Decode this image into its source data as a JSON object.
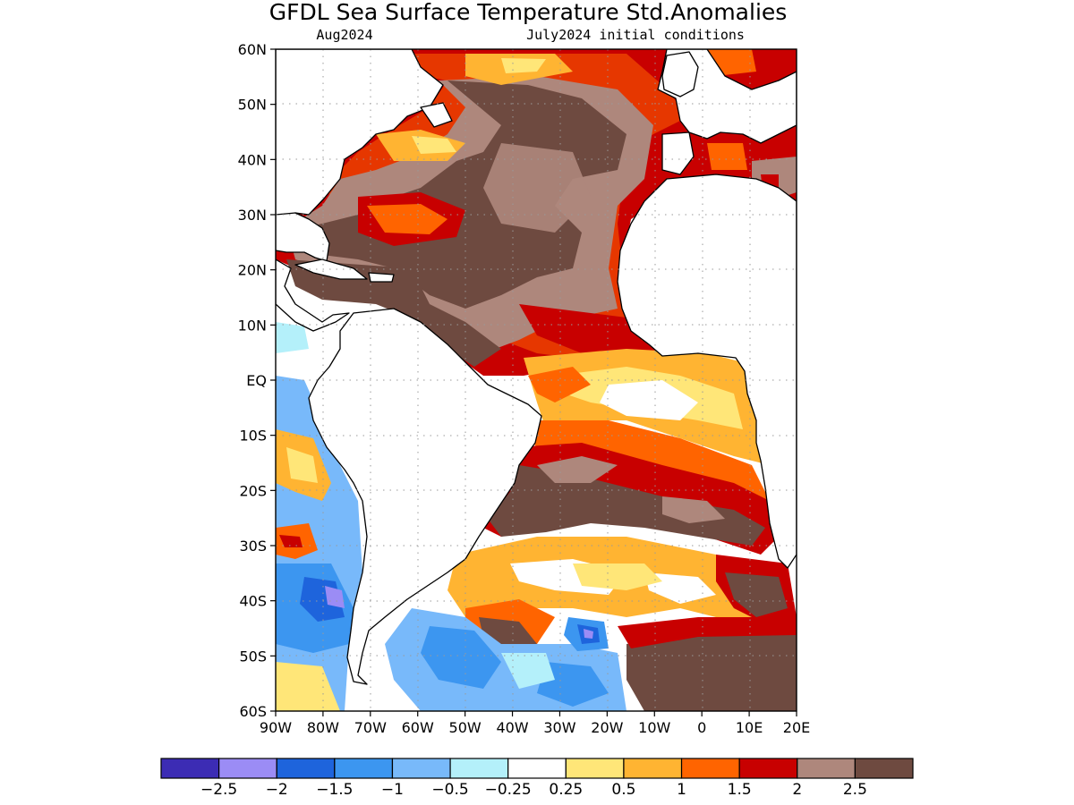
{
  "title": "GFDL Sea Surface Temperature Std.Anomalies",
  "subtitle_left": "Aug2024",
  "subtitle_right": "July2024 initial conditions",
  "map": {
    "lon_range": [
      -90,
      20
    ],
    "lat_range": [
      -60,
      60
    ],
    "lon_ticks": [
      "90W",
      "80W",
      "70W",
      "60W",
      "50W",
      "40W",
      "30W",
      "20W",
      "10W",
      "0",
      "10E",
      "20E"
    ],
    "lat_ticks": [
      "60N",
      "50N",
      "40N",
      "30N",
      "20N",
      "10N",
      "EQ",
      "10S",
      "20S",
      "30S",
      "40S",
      "50S",
      "60S"
    ],
    "grid": "dotted"
  },
  "colorbar": {
    "colors": [
      "#3c2cb4",
      "#9b8cf5",
      "#1e64dc",
      "#3c96f0",
      "#78b9fa",
      "#b4f0fa",
      "#ffffff",
      "#ffe678",
      "#ffb432",
      "#ff6400",
      "#c80000",
      "#ae877c",
      "#6e4a40"
    ],
    "labels": [
      "-2.5",
      "-2",
      "-1.5",
      "-1",
      "-0.5",
      "-0.25",
      "0.25",
      "0.5",
      "1",
      "1.5",
      "2",
      "2.5"
    ]
  }
}
